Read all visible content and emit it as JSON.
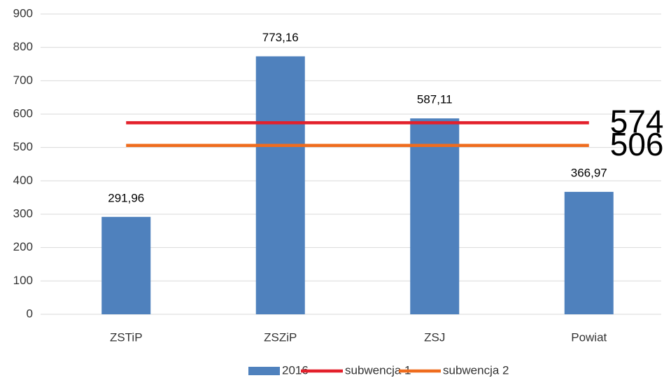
{
  "chart_data": {
    "type": "bar",
    "categories": [
      "ZSTiP",
      "ZSZiP",
      "ZSJ",
      "Powiat"
    ],
    "series": [
      {
        "name": "2016",
        "type": "bar",
        "color": "#4f81bd",
        "values": [
          291.96,
          773.16,
          587.11,
          366.97
        ],
        "value_labels": [
          "291,96",
          "773,16",
          "587,11",
          "366,97"
        ]
      },
      {
        "name": "subwencja 1",
        "type": "line",
        "color": "#e3202b",
        "values": [
          574,
          574,
          574,
          574
        ]
      },
      {
        "name": "subwencja 2",
        "type": "line",
        "color": "#ef6c1e",
        "values": [
          506,
          506,
          506,
          506
        ]
      }
    ],
    "ylim": [
      0,
      900
    ],
    "yticks": [
      0,
      100,
      200,
      300,
      400,
      500,
      600,
      700,
      800,
      900
    ],
    "grid": true,
    "legend": "bottom"
  }
}
